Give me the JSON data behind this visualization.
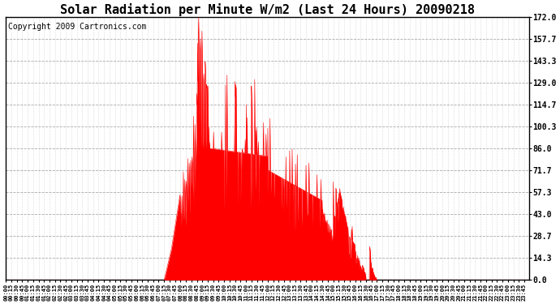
{
  "title": "Solar Radiation per Minute W/m2 (Last 24 Hours) 20090218",
  "copyright_text": "Copyright 2009 Cartronics.com",
  "yticks": [
    0.0,
    14.3,
    28.7,
    43.0,
    57.3,
    71.7,
    86.0,
    100.3,
    114.7,
    129.0,
    143.3,
    157.7,
    172.0
  ],
  "ymin": 0.0,
  "ymax": 172.0,
  "bar_color": "#ff0000",
  "background_color": "#ffffff",
  "dashed_line_color": "#ff0000",
  "title_fontsize": 11,
  "copyright_fontsize": 7,
  "num_minutes": 1440,
  "xtick_positions": [
    0,
    15,
    30,
    45,
    60,
    75,
    90,
    105,
    120,
    135,
    150,
    165,
    180,
    195,
    210,
    225,
    240,
    255,
    270,
    285,
    300,
    315,
    330,
    345,
    360,
    375,
    390,
    405,
    420,
    435,
    450,
    465,
    480,
    495,
    510,
    525,
    540,
    555,
    570,
    585,
    600,
    615,
    630,
    645,
    660,
    675,
    690,
    705,
    720,
    735,
    750,
    765,
    780,
    795,
    810,
    825,
    840,
    855,
    870,
    885,
    900,
    915,
    930,
    945,
    960,
    975,
    990,
    1005,
    1020,
    1035,
    1050,
    1065,
    1080,
    1095,
    1110,
    1125,
    1140,
    1155,
    1170,
    1185,
    1200,
    1215,
    1230,
    1245,
    1260,
    1275,
    1290,
    1305,
    1320,
    1335,
    1350,
    1365,
    1380,
    1395,
    1410,
    1425
  ],
  "xtick_labels": [
    "00:00",
    "00:15",
    "00:30",
    "00:45",
    "01:00",
    "01:15",
    "01:30",
    "01:45",
    "02:00",
    "02:15",
    "02:30",
    "02:45",
    "03:00",
    "03:15",
    "03:30",
    "03:45",
    "04:00",
    "04:15",
    "04:30",
    "04:45",
    "05:00",
    "05:15",
    "05:30",
    "05:45",
    "06:00",
    "06:15",
    "06:30",
    "06:45",
    "07:00",
    "07:15",
    "07:30",
    "07:45",
    "08:00",
    "08:15",
    "08:30",
    "08:45",
    "09:00",
    "09:15",
    "09:30",
    "09:45",
    "10:00",
    "10:15",
    "10:30",
    "10:45",
    "11:00",
    "11:15",
    "11:30",
    "11:45",
    "12:00",
    "12:15",
    "12:30",
    "12:45",
    "13:00",
    "13:15",
    "13:30",
    "13:45",
    "14:00",
    "14:15",
    "14:30",
    "14:45",
    "15:00",
    "15:15",
    "15:30",
    "15:45",
    "16:00",
    "16:15",
    "16:30",
    "16:45",
    "17:00",
    "17:15",
    "17:30",
    "17:45",
    "18:00",
    "18:15",
    "18:30",
    "18:45",
    "19:00",
    "19:15",
    "19:30",
    "19:45",
    "20:00",
    "20:15",
    "20:30",
    "20:45",
    "21:00",
    "21:15",
    "21:30",
    "21:45",
    "22:00",
    "22:15",
    "22:30",
    "22:45",
    "23:00",
    "23:15",
    "23:30",
    "23:45"
  ]
}
